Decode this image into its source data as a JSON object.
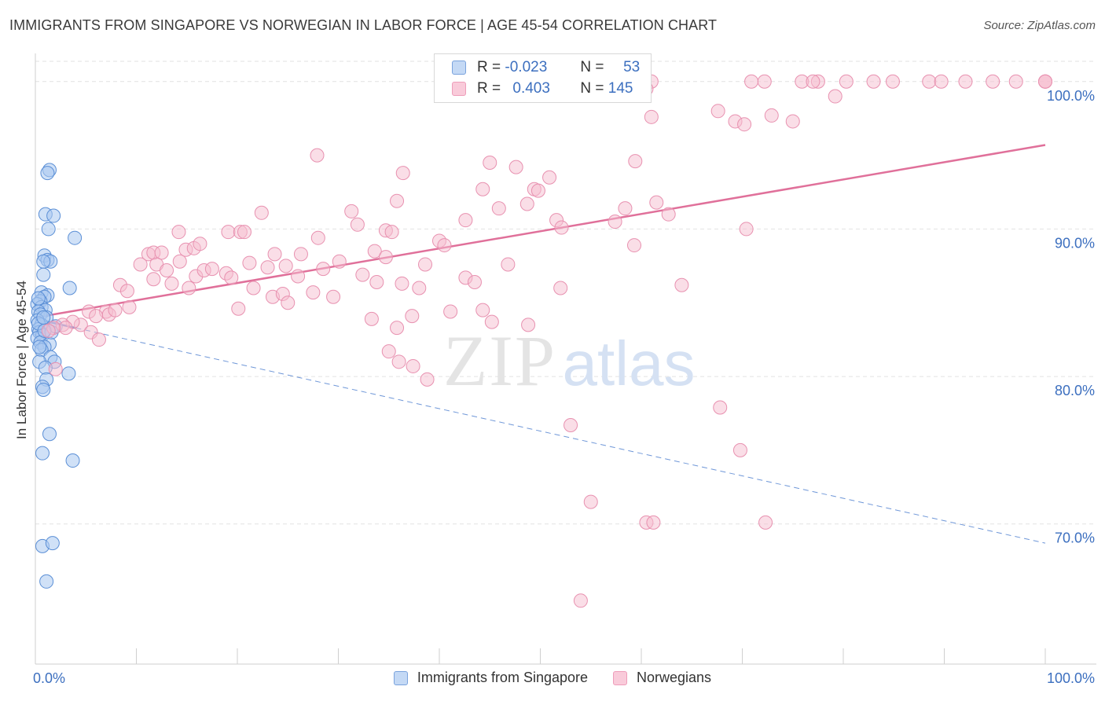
{
  "title": "IMMIGRANTS FROM SINGAPORE VS NORWEGIAN IN LABOR FORCE | AGE 45-54 CORRELATION CHART",
  "source": "Source: ZipAtlas.com",
  "watermark": {
    "zip": "ZIP",
    "atlas": "atlas"
  },
  "colors": {
    "blue_fill": "#a9c8f0",
    "blue_stroke": "#5b8fd6",
    "blue_line": "#3a6fcc",
    "pink_fill": "#f6bdd0",
    "pink_stroke": "#e891b0",
    "pink_line": "#e0709a",
    "tick_label": "#3c6fbf",
    "grid": "#e2e2e2"
  },
  "legend_top": [
    {
      "r_label": "R =",
      "r_value": "-0.023",
      "n_label": "N =",
      "n_value": "53",
      "color": "blue"
    },
    {
      "r_label": "R =",
      "r_value": "0.403",
      "n_label": "N =",
      "n_value": "145",
      "color": "pink"
    }
  ],
  "chart_data": {
    "type": "scatter",
    "title": "IMMIGRANTS FROM SINGAPORE VS NORWEGIAN IN LABOR FORCE | AGE 45-54 CORRELATION CHART",
    "xlabel": "",
    "ylabel": "In Labor Force | Age 45-54",
    "xlim": [
      0,
      100
    ],
    "ylim": [
      60.5,
      101.8
    ],
    "x_tick_labels": [
      "0.0%",
      "100.0%"
    ],
    "y_ticks": [
      {
        "value": 70,
        "label": "70.0%"
      },
      {
        "value": 80,
        "label": "80.0%"
      },
      {
        "value": 90,
        "label": "90.0%"
      },
      {
        "value": 100,
        "label": "100.0%"
      }
    ],
    "grid": true,
    "legend_position": "bottom",
    "series": [
      {
        "name": "Immigrants from Singapore",
        "color": "blue",
        "trend": {
          "x": [
            0,
            100
          ],
          "y": [
            83.9,
            68.7
          ],
          "solid_until_x": 4
        },
        "points": [
          [
            1.4,
            94.0
          ],
          [
            1.2,
            93.8
          ],
          [
            1.0,
            91.0
          ],
          [
            1.8,
            90.9
          ],
          [
            1.3,
            90.0
          ],
          [
            3.9,
            89.4
          ],
          [
            0.9,
            88.2
          ],
          [
            1.2,
            87.9
          ],
          [
            1.5,
            87.8
          ],
          [
            0.8,
            87.8
          ],
          [
            0.8,
            86.9
          ],
          [
            3.4,
            86.0
          ],
          [
            0.6,
            85.7
          ],
          [
            1.2,
            85.5
          ],
          [
            0.9,
            85.4
          ],
          [
            0.5,
            85.1
          ],
          [
            0.2,
            84.9
          ],
          [
            0.6,
            84.7
          ],
          [
            1.0,
            84.5
          ],
          [
            0.3,
            84.4
          ],
          [
            0.5,
            84.2
          ],
          [
            1.1,
            84.0
          ],
          [
            0.2,
            83.8
          ],
          [
            0.6,
            83.5
          ],
          [
            0.3,
            83.2
          ],
          [
            0.4,
            83.0
          ],
          [
            0.7,
            82.8
          ],
          [
            0.2,
            82.6
          ],
          [
            0.5,
            82.3
          ],
          [
            1.4,
            82.2
          ],
          [
            0.9,
            82.0
          ],
          [
            0.6,
            81.8
          ],
          [
            1.5,
            81.3
          ],
          [
            1.9,
            81.0
          ],
          [
            0.4,
            81.0
          ],
          [
            1.0,
            80.6
          ],
          [
            3.3,
            80.2
          ],
          [
            1.1,
            79.8
          ],
          [
            0.7,
            79.3
          ],
          [
            0.8,
            79.1
          ],
          [
            1.4,
            76.1
          ],
          [
            0.7,
            74.8
          ],
          [
            3.7,
            74.3
          ],
          [
            0.7,
            68.5
          ],
          [
            1.7,
            68.7
          ],
          [
            1.1,
            66.1
          ],
          [
            0.3,
            83.6
          ],
          [
            0.8,
            84.0
          ],
          [
            1.6,
            83.0
          ],
          [
            0.4,
            82.0
          ],
          [
            2.0,
            83.4
          ],
          [
            0.3,
            85.3
          ],
          [
            0.9,
            83.1
          ]
        ]
      },
      {
        "name": "Norwegians",
        "color": "pink",
        "trend": {
          "x": [
            0,
            100
          ],
          "y": [
            84.0,
            95.7
          ]
        },
        "points": [
          [
            56.7,
            100.0
          ],
          [
            61.0,
            100.0
          ],
          [
            72.2,
            100.0
          ],
          [
            75.9,
            100.0
          ],
          [
            60.5,
            99.5
          ],
          [
            77.5,
            100.0
          ],
          [
            79.2,
            99.0
          ],
          [
            80.3,
            100.0
          ],
          [
            83.0,
            100.0
          ],
          [
            84.9,
            100.0
          ],
          [
            88.5,
            100.0
          ],
          [
            89.7,
            100.0
          ],
          [
            77.0,
            100.0
          ],
          [
            70.9,
            100.0
          ],
          [
            92.1,
            100.0
          ],
          [
            94.8,
            100.0
          ],
          [
            97.1,
            100.0
          ],
          [
            103.0,
            100.0
          ],
          [
            102.3,
            100.0
          ],
          [
            100.6,
            100.0
          ],
          [
            67.6,
            98.0
          ],
          [
            61.0,
            97.6
          ],
          [
            69.3,
            97.3
          ],
          [
            70.2,
            97.1
          ],
          [
            72.9,
            97.7
          ],
          [
            75.0,
            97.3
          ],
          [
            27.9,
            95.0
          ],
          [
            45.0,
            94.5
          ],
          [
            47.6,
            94.2
          ],
          [
            59.4,
            94.6
          ],
          [
            36.4,
            93.8
          ],
          [
            50.9,
            93.5
          ],
          [
            44.3,
            92.7
          ],
          [
            49.4,
            92.7
          ],
          [
            49.8,
            92.6
          ],
          [
            48.7,
            91.7
          ],
          [
            35.8,
            91.9
          ],
          [
            45.9,
            91.4
          ],
          [
            58.4,
            91.4
          ],
          [
            61.5,
            91.8
          ],
          [
            62.7,
            91.0
          ],
          [
            22.4,
            91.1
          ],
          [
            31.3,
            91.2
          ],
          [
            31.9,
            90.3
          ],
          [
            34.7,
            89.9
          ],
          [
            35.3,
            89.8
          ],
          [
            19.1,
            89.8
          ],
          [
            14.2,
            89.8
          ],
          [
            20.3,
            89.8
          ],
          [
            20.7,
            89.8
          ],
          [
            28.0,
            89.4
          ],
          [
            42.6,
            90.6
          ],
          [
            51.6,
            90.6
          ],
          [
            52.1,
            90.1
          ],
          [
            40.0,
            89.2
          ],
          [
            40.5,
            88.9
          ],
          [
            70.4,
            90.0
          ],
          [
            57.4,
            90.5
          ],
          [
            59.3,
            88.9
          ],
          [
            11.2,
            88.3
          ],
          [
            11.7,
            88.4
          ],
          [
            12.5,
            88.4
          ],
          [
            14.9,
            88.6
          ],
          [
            15.7,
            88.7
          ],
          [
            16.3,
            89.0
          ],
          [
            23.7,
            88.3
          ],
          [
            26.3,
            88.3
          ],
          [
            33.6,
            88.5
          ],
          [
            34.7,
            88.1
          ],
          [
            10.4,
            87.6
          ],
          [
            12.0,
            87.6
          ],
          [
            13.0,
            87.2
          ],
          [
            14.3,
            87.8
          ],
          [
            15.9,
            86.8
          ],
          [
            16.7,
            87.2
          ],
          [
            17.5,
            87.3
          ],
          [
            18.9,
            87.0
          ],
          [
            19.4,
            86.7
          ],
          [
            21.2,
            87.7
          ],
          [
            23.0,
            87.4
          ],
          [
            24.8,
            87.5
          ],
          [
            26.0,
            86.8
          ],
          [
            28.5,
            87.3
          ],
          [
            30.1,
            87.8
          ],
          [
            32.4,
            86.9
          ],
          [
            33.8,
            86.4
          ],
          [
            36.3,
            86.3
          ],
          [
            38.0,
            86.0
          ],
          [
            38.6,
            87.6
          ],
          [
            11.7,
            86.6
          ],
          [
            13.5,
            86.3
          ],
          [
            8.4,
            86.2
          ],
          [
            9.1,
            85.8
          ],
          [
            15.2,
            86.0
          ],
          [
            21.6,
            86.0
          ],
          [
            23.5,
            85.4
          ],
          [
            24.5,
            85.6
          ],
          [
            25.0,
            85.0
          ],
          [
            27.5,
            85.7
          ],
          [
            29.5,
            85.4
          ],
          [
            42.6,
            86.7
          ],
          [
            43.5,
            86.4
          ],
          [
            46.8,
            87.6
          ],
          [
            52.0,
            86.0
          ],
          [
            64.0,
            86.2
          ],
          [
            5.3,
            84.4
          ],
          [
            7.0,
            84.4
          ],
          [
            7.3,
            84.2
          ],
          [
            7.9,
            84.5
          ],
          [
            9.3,
            84.7
          ],
          [
            6.0,
            84.1
          ],
          [
            4.5,
            83.5
          ],
          [
            3.7,
            83.7
          ],
          [
            2.7,
            83.5
          ],
          [
            3.0,
            83.3
          ],
          [
            1.8,
            83.3
          ],
          [
            1.3,
            83.1
          ],
          [
            5.5,
            83.0
          ],
          [
            6.3,
            82.5
          ],
          [
            20.1,
            84.6
          ],
          [
            33.3,
            83.9
          ],
          [
            37.3,
            84.1
          ],
          [
            41.1,
            84.4
          ],
          [
            44.3,
            84.5
          ],
          [
            45.2,
            83.7
          ],
          [
            35.8,
            83.3
          ],
          [
            48.8,
            83.5
          ],
          [
            35.0,
            81.7
          ],
          [
            36.0,
            81.0
          ],
          [
            37.4,
            80.7
          ],
          [
            38.8,
            79.8
          ],
          [
            53.0,
            76.7
          ],
          [
            67.8,
            77.9
          ],
          [
            69.8,
            75.0
          ],
          [
            55.0,
            71.5
          ],
          [
            60.5,
            70.1
          ],
          [
            61.2,
            70.1
          ],
          [
            72.3,
            70.1
          ],
          [
            54.0,
            64.8
          ],
          [
            2.0,
            80.5
          ]
        ]
      }
    ]
  },
  "bottom_legend": [
    {
      "label": "Immigrants from Singapore",
      "color": "blue"
    },
    {
      "label": "Norwegians",
      "color": "pink"
    }
  ]
}
